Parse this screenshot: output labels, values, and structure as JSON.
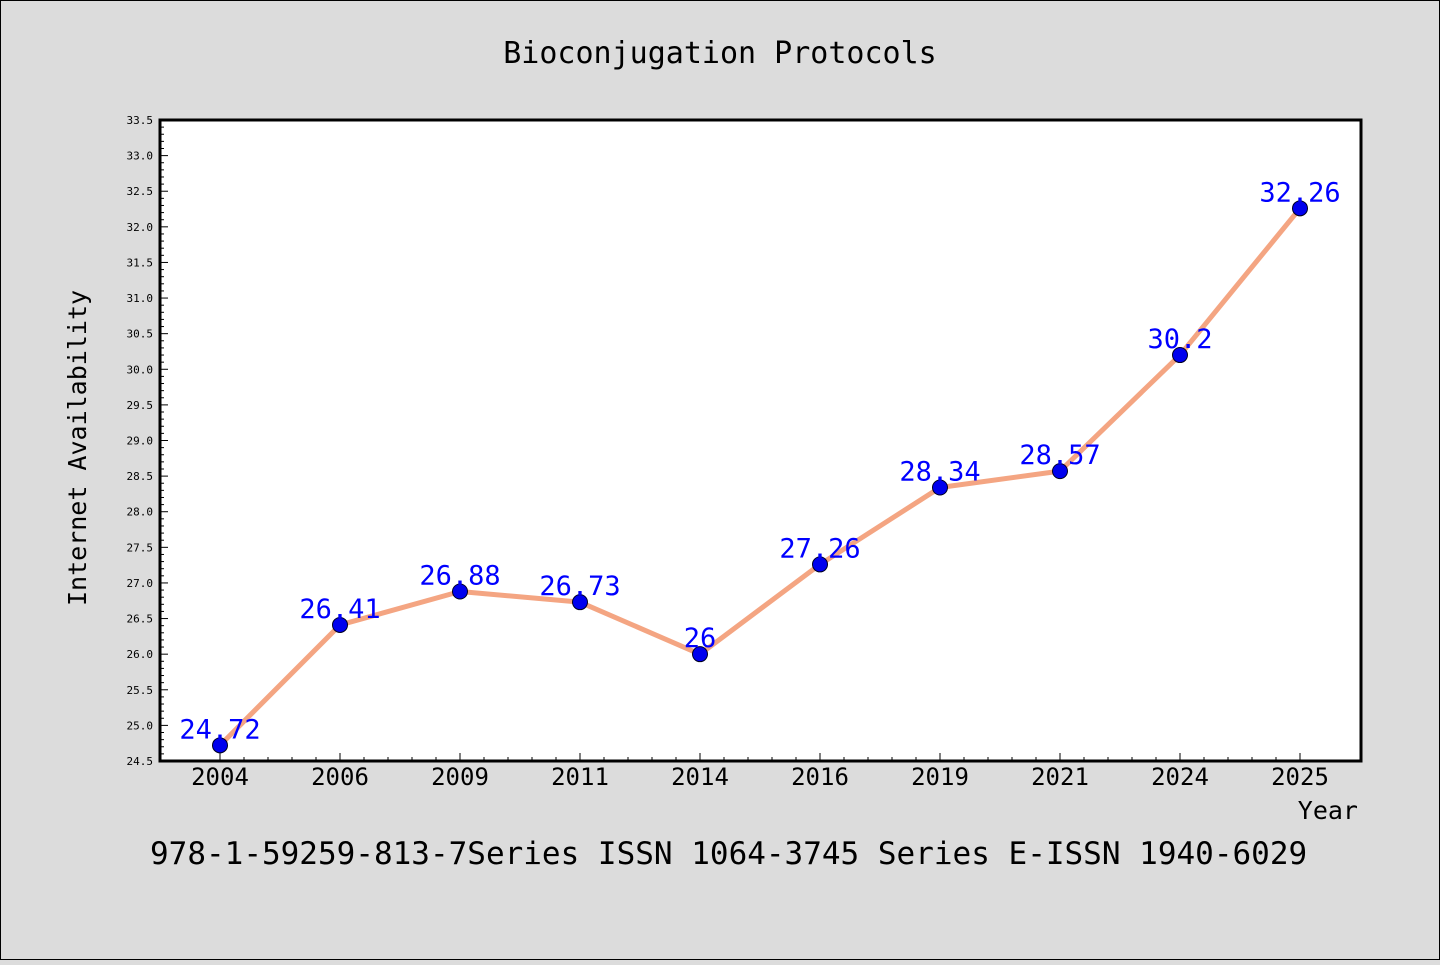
{
  "chart_data": {
    "type": "line",
    "title": "Bioconjugation Protocols",
    "xlabel": "Year",
    "ylabel": "Internet Availability",
    "categories": [
      "2004",
      "2006",
      "2009",
      "2011",
      "2014",
      "2016",
      "2019",
      "2021",
      "2024",
      "2025"
    ],
    "series": [
      {
        "values": [
          24.72,
          26.41,
          26.88,
          26.73,
          26.0,
          27.26,
          28.34,
          28.57,
          30.2,
          32.26
        ],
        "data_labels": [
          "24.72",
          "26.41",
          "26.88",
          "26.73",
          "26",
          "27.26",
          "28.34",
          "28.57",
          "30.2",
          "32.26"
        ]
      }
    ],
    "ylim": [
      24.5,
      33.5
    ],
    "y_ticks": [
      "24.5",
      "25.0",
      "25.5",
      "26.0",
      "26.5",
      "27.0",
      "27.5",
      "28.0",
      "28.5",
      "29.0",
      "29.5",
      "30.0",
      "30.5",
      "31.0",
      "31.5",
      "32.0",
      "32.5",
      "33.0",
      "33.5"
    ],
    "grid": false,
    "legend": "none",
    "colors": {
      "line": "#f4a582",
      "marker": "#0000ee",
      "data_label": "#0000ff",
      "background": "#dcdcdc",
      "plot_background": "#ffffff"
    },
    "footnote": "978-1-59259-813-7Series ISSN 1064-3745 Series E-ISSN 1940-6029"
  }
}
